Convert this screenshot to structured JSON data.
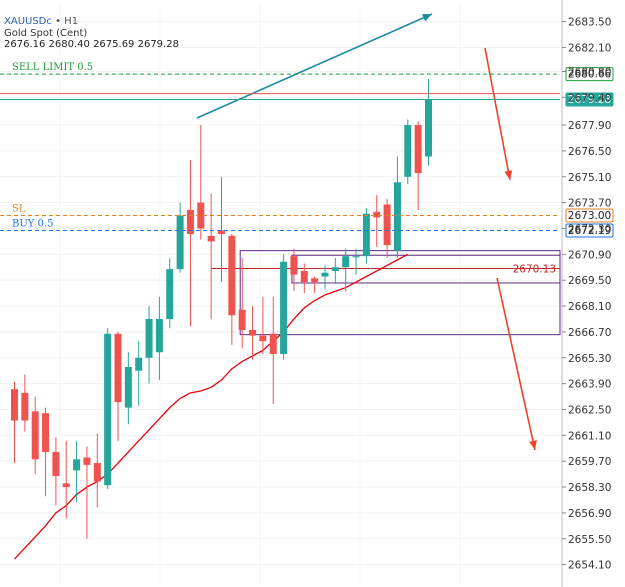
{
  "header": {
    "symbol": "XAUUSDc",
    "separator": "•",
    "timeframe": "H1",
    "name": "Gold Spot (Cent)",
    "ohlc": "2676.16 2680.40 2675.69 2679.28"
  },
  "chart_data": {
    "type": "candlestick",
    "y_ticks": [
      "2683.50",
      "2682.10",
      "2680.80",
      "2679.40",
      "2677.90",
      "2676.50",
      "2675.10",
      "2673.70",
      "2672.30",
      "2670.90",
      "2669.50",
      "2668.10",
      "2666.70",
      "2665.30",
      "2663.90",
      "2662.50",
      "2661.10",
      "2659.70",
      "2658.30",
      "2656.90",
      "2655.50",
      "2654.10"
    ],
    "ylim": [
      2653.05,
      2684.4
    ],
    "colors": {
      "up": "#26a69a",
      "down": "#ef5350",
      "ma": "#e8000b",
      "arrow_up": "#1c8aa0",
      "arrow_down": "#f0422a"
    },
    "candles": [
      {
        "o": 2663.6,
        "h": 2664.0,
        "l": 2659.6,
        "c": 2661.9
      },
      {
        "o": 2663.4,
        "h": 2664.4,
        "l": 2661.3,
        "c": 2661.9
      },
      {
        "o": 2662.4,
        "h": 2663.2,
        "l": 2659.0,
        "c": 2659.8
      },
      {
        "o": 2662.3,
        "h": 2662.6,
        "l": 2657.8,
        "c": 2660.2
      },
      {
        "o": 2660.2,
        "h": 2661.0,
        "l": 2657.3,
        "c": 2658.9
      },
      {
        "o": 2658.5,
        "h": 2660.8,
        "l": 2656.6,
        "c": 2658.3
      },
      {
        "o": 2659.2,
        "h": 2660.8,
        "l": 2657.5,
        "c": 2659.8
      },
      {
        "o": 2659.9,
        "h": 2660.5,
        "l": 2655.5,
        "c": 2659.5
      },
      {
        "o": 2659.6,
        "h": 2661.2,
        "l": 2657.2,
        "c": 2658.6
      },
      {
        "o": 2658.4,
        "h": 2666.9,
        "l": 2658.2,
        "c": 2666.6
      },
      {
        "o": 2666.6,
        "h": 2666.7,
        "l": 2660.8,
        "c": 2662.9
      },
      {
        "o": 2662.6,
        "h": 2665.6,
        "l": 2661.7,
        "c": 2664.8
      },
      {
        "o": 2664.6,
        "h": 2666.2,
        "l": 2662.7,
        "c": 2665.3
      },
      {
        "o": 2665.3,
        "h": 2668.1,
        "l": 2663.9,
        "c": 2667.4
      },
      {
        "o": 2665.6,
        "h": 2668.6,
        "l": 2664.1,
        "c": 2667.4
      },
      {
        "o": 2667.4,
        "h": 2670.7,
        "l": 2666.9,
        "c": 2670.1
      },
      {
        "o": 2670.1,
        "h": 2673.7,
        "l": 2669.9,
        "c": 2673.0
      },
      {
        "o": 2673.3,
        "h": 2676.0,
        "l": 2667.0,
        "c": 2672.0
      },
      {
        "o": 2673.7,
        "h": 2677.9,
        "l": 2671.7,
        "c": 2672.3
      },
      {
        "o": 2671.9,
        "h": 2674.2,
        "l": 2667.4,
        "c": 2671.6
      },
      {
        "o": 2672.2,
        "h": 2675.1,
        "l": 2669.4,
        "c": 2672.0
      },
      {
        "o": 2671.9,
        "h": 2672.0,
        "l": 2666.0,
        "c": 2667.6
      },
      {
        "o": 2667.9,
        "h": 2670.7,
        "l": 2665.8,
        "c": 2666.8
      },
      {
        "o": 2666.8,
        "h": 2668.1,
        "l": 2665.2,
        "c": 2666.5
      },
      {
        "o": 2666.5,
        "h": 2668.6,
        "l": 2665.5,
        "c": 2666.2
      },
      {
        "o": 2666.6,
        "h": 2668.6,
        "l": 2662.8,
        "c": 2665.5
      },
      {
        "o": 2665.5,
        "h": 2670.9,
        "l": 2665.2,
        "c": 2670.5
      },
      {
        "o": 2670.8,
        "h": 2671.2,
        "l": 2668.9,
        "c": 2669.8
      },
      {
        "o": 2670.0,
        "h": 2670.4,
        "l": 2668.8,
        "c": 2669.4
      },
      {
        "o": 2669.6,
        "h": 2669.7,
        "l": 2668.8,
        "c": 2669.4
      },
      {
        "o": 2669.7,
        "h": 2670.3,
        "l": 2669.0,
        "c": 2669.9
      },
      {
        "o": 2670.0,
        "h": 2670.7,
        "l": 2669.3,
        "c": 2670.2
      },
      {
        "o": 2670.2,
        "h": 2671.2,
        "l": 2668.9,
        "c": 2670.8
      },
      {
        "o": 2670.8,
        "h": 2671.2,
        "l": 2669.8,
        "c": 2670.8
      },
      {
        "o": 2670.8,
        "h": 2673.4,
        "l": 2670.4,
        "c": 2673.1
      },
      {
        "o": 2673.2,
        "h": 2674.1,
        "l": 2671.3,
        "c": 2672.9
      },
      {
        "o": 2673.6,
        "h": 2673.9,
        "l": 2670.7,
        "c": 2671.4
      },
      {
        "o": 2671.1,
        "h": 2676.2,
        "l": 2670.7,
        "c": 2674.8
      },
      {
        "o": 2675.1,
        "h": 2678.2,
        "l": 2674.7,
        "c": 2677.9
      },
      {
        "o": 2677.9,
        "h": 2678.1,
        "l": 2673.3,
        "c": 2675.3
      },
      {
        "o": 2676.2,
        "h": 2680.4,
        "l": 2675.7,
        "c": 2679.3
      }
    ],
    "moving_average": [
      [
        0,
        2654.4
      ],
      [
        1,
        2655.0
      ],
      [
        2,
        2655.6
      ],
      [
        3,
        2656.2
      ],
      [
        4,
        2656.9
      ],
      [
        5,
        2657.3
      ],
      [
        6,
        2657.9
      ],
      [
        7,
        2658.3
      ],
      [
        8,
        2658.6
      ],
      [
        9,
        2659.0
      ],
      [
        10,
        2659.6
      ],
      [
        11,
        2660.2
      ],
      [
        12,
        2660.8
      ],
      [
        13,
        2661.4
      ],
      [
        14,
        2662.0
      ],
      [
        15,
        2662.6
      ],
      [
        16,
        2663.1
      ],
      [
        17,
        2663.4
      ],
      [
        18,
        2663.5
      ],
      [
        19,
        2663.7
      ],
      [
        20,
        2664.1
      ],
      [
        21,
        2664.7
      ],
      [
        22,
        2665.1
      ],
      [
        23,
        2665.4
      ],
      [
        24,
        2665.7
      ],
      [
        25,
        2666.2
      ],
      [
        26,
        2666.7
      ],
      [
        27,
        2667.4
      ],
      [
        28,
        2668.0
      ],
      [
        29,
        2668.4
      ],
      [
        30,
        2668.7
      ],
      [
        31,
        2668.9
      ],
      [
        32,
        2669.1
      ],
      [
        33,
        2669.4
      ],
      [
        34,
        2669.7
      ],
      [
        35,
        2670.0
      ],
      [
        36,
        2670.3
      ],
      [
        37,
        2670.6
      ],
      [
        38,
        2670.9
      ]
    ],
    "levels": [
      {
        "label": "SELL LIMIT 0.5",
        "price": 2680.66,
        "tag": "2680.66",
        "color": "#1e9c3a",
        "style": "dashed",
        "tag_style": "outline"
      },
      {
        "label": "",
        "price": 2679.6,
        "tag": "",
        "color": "#ef5350",
        "style": "solid",
        "tag_style": "none"
      },
      {
        "label": "",
        "price": 2679.28,
        "tag": "2679.28",
        "color": "#26a69a",
        "style": "solid",
        "tag_style": "filled"
      },
      {
        "label": "SL",
        "price": 2673.0,
        "tag": "2673.00",
        "color": "#e67e22",
        "style": "dashed",
        "tag_style": "outline"
      },
      {
        "label": "BUY 0.5",
        "price": 2672.19,
        "tag": "2672.19",
        "color": "#1e73e8",
        "style": "dashed",
        "tag_style": "outline"
      }
    ],
    "price_labels": [
      {
        "text": "2670.13",
        "price": 2670.13,
        "color": "#c62828"
      }
    ]
  }
}
